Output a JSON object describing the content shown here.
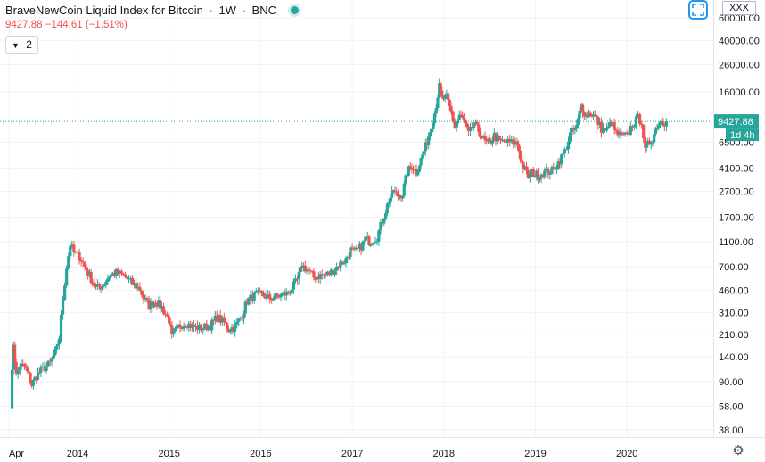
{
  "header": {
    "symbol_name": "BraveNewCoin Liquid Index for Bitcoin",
    "interval": "1W",
    "exchange": "BNC",
    "sep1": "·",
    "sep2": "·"
  },
  "price_line": {
    "last": "9427.88",
    "change": "−144.61",
    "change_pct": "(−1.51%)"
  },
  "indicators_button": {
    "label": "2"
  },
  "currency_button": {
    "label": "XXX"
  },
  "price_badge": {
    "value": "9427.88",
    "countdown": "1d 4h"
  },
  "colors": {
    "up": "#26a69a",
    "down": "#ef5350",
    "last_price_line": "#26a69a"
  },
  "icons": {
    "expand": "expand-icon",
    "settings": "gear-icon",
    "indicator_toggle": "chevron-down-icon"
  },
  "chart_data": {
    "type": "candlestick",
    "scale": "log",
    "y_ticks": [
      38,
      58,
      90,
      140,
      210,
      310,
      460,
      700,
      1100,
      1700,
      2700,
      4100,
      6500,
      16000,
      26000,
      40000,
      60000
    ],
    "y_tick_labels": [
      "38.00",
      "58.00",
      "90.00",
      "140.00",
      "210.00",
      "310.00",
      "460.00",
      "700.00",
      "1100.00",
      "1700.00",
      "2700.00",
      "4100.00",
      "6500.00",
      "16000.00",
      "26000.00",
      "40000.00",
      "60000.00"
    ],
    "x_ticks": [
      2013.25,
      2014,
      2015,
      2016,
      2017,
      2018,
      2019,
      2020
    ],
    "x_tick_labels": [
      "Apr",
      "2014",
      "2015",
      "2016",
      "2017",
      "2018",
      "2019",
      "2020"
    ],
    "last_price": 9427.88,
    "grid": true,
    "series": [
      {
        "t": 2013.27,
        "p": 60
      },
      {
        "t": 2013.3,
        "p": 180
      },
      {
        "t": 2013.33,
        "p": 100
      },
      {
        "t": 2013.37,
        "p": 120
      },
      {
        "t": 2013.42,
        "p": 118
      },
      {
        "t": 2013.47,
        "p": 100
      },
      {
        "t": 2013.5,
        "p": 85
      },
      {
        "t": 2013.55,
        "p": 100
      },
      {
        "t": 2013.6,
        "p": 110
      },
      {
        "t": 2013.7,
        "p": 125
      },
      {
        "t": 2013.77,
        "p": 160
      },
      {
        "t": 2013.8,
        "p": 200
      },
      {
        "t": 2013.84,
        "p": 400
      },
      {
        "t": 2013.88,
        "p": 700
      },
      {
        "t": 2013.92,
        "p": 1050
      },
      {
        "t": 2013.96,
        "p": 900
      },
      {
        "t": 2014.02,
        "p": 850
      },
      {
        "t": 2014.08,
        "p": 700
      },
      {
        "t": 2014.13,
        "p": 600
      },
      {
        "t": 2014.2,
        "p": 480
      },
      {
        "t": 2014.27,
        "p": 500
      },
      {
        "t": 2014.35,
        "p": 600
      },
      {
        "t": 2014.42,
        "p": 630
      },
      {
        "t": 2014.5,
        "p": 600
      },
      {
        "t": 2014.6,
        "p": 520
      },
      {
        "t": 2014.68,
        "p": 470
      },
      {
        "t": 2014.72,
        "p": 400
      },
      {
        "t": 2014.78,
        "p": 350
      },
      {
        "t": 2014.85,
        "p": 380
      },
      {
        "t": 2014.92,
        "p": 340
      },
      {
        "t": 2015.0,
        "p": 270
      },
      {
        "t": 2015.03,
        "p": 200
      },
      {
        "t": 2015.1,
        "p": 240
      },
      {
        "t": 2015.18,
        "p": 260
      },
      {
        "t": 2015.25,
        "p": 240
      },
      {
        "t": 2015.35,
        "p": 235
      },
      {
        "t": 2015.45,
        "p": 245
      },
      {
        "t": 2015.52,
        "p": 285
      },
      {
        "t": 2015.6,
        "p": 260
      },
      {
        "t": 2015.65,
        "p": 230
      },
      {
        "t": 2015.72,
        "p": 240
      },
      {
        "t": 2015.8,
        "p": 300
      },
      {
        "t": 2015.85,
        "p": 380
      },
      {
        "t": 2015.95,
        "p": 430
      },
      {
        "t": 2016.03,
        "p": 420
      },
      {
        "t": 2016.1,
        "p": 400
      },
      {
        "t": 2016.2,
        "p": 415
      },
      {
        "t": 2016.3,
        "p": 440
      },
      {
        "t": 2016.4,
        "p": 550
      },
      {
        "t": 2016.45,
        "p": 720
      },
      {
        "t": 2016.52,
        "p": 650
      },
      {
        "t": 2016.58,
        "p": 580
      },
      {
        "t": 2016.65,
        "p": 600
      },
      {
        "t": 2016.75,
        "p": 620
      },
      {
        "t": 2016.85,
        "p": 720
      },
      {
        "t": 2016.93,
        "p": 800
      },
      {
        "t": 2016.98,
        "p": 950
      },
      {
        "t": 2017.02,
        "p": 900
      },
      {
        "t": 2017.08,
        "p": 980
      },
      {
        "t": 2017.15,
        "p": 1150
      },
      {
        "t": 2017.2,
        "p": 1100
      },
      {
        "t": 2017.27,
        "p": 1200
      },
      {
        "t": 2017.33,
        "p": 1600
      },
      {
        "t": 2017.4,
        "p": 2300
      },
      {
        "t": 2017.45,
        "p": 2700
      },
      {
        "t": 2017.5,
        "p": 2500
      },
      {
        "t": 2017.55,
        "p": 2600
      },
      {
        "t": 2017.6,
        "p": 3800
      },
      {
        "t": 2017.65,
        "p": 4300
      },
      {
        "t": 2017.7,
        "p": 3800
      },
      {
        "t": 2017.75,
        "p": 4800
      },
      {
        "t": 2017.8,
        "p": 6000
      },
      {
        "t": 2017.85,
        "p": 8000
      },
      {
        "t": 2017.9,
        "p": 11000
      },
      {
        "t": 2017.95,
        "p": 17500
      },
      {
        "t": 2017.98,
        "p": 14000
      },
      {
        "t": 2018.03,
        "p": 14500
      },
      {
        "t": 2018.08,
        "p": 11000
      },
      {
        "t": 2018.12,
        "p": 8500
      },
      {
        "t": 2018.17,
        "p": 10500
      },
      {
        "t": 2018.22,
        "p": 9500
      },
      {
        "t": 2018.27,
        "p": 7500
      },
      {
        "t": 2018.33,
        "p": 9000
      },
      {
        "t": 2018.38,
        "p": 8000
      },
      {
        "t": 2018.45,
        "p": 6500
      },
      {
        "t": 2018.5,
        "p": 6400
      },
      {
        "t": 2018.55,
        "p": 7300
      },
      {
        "t": 2018.6,
        "p": 6600
      },
      {
        "t": 2018.7,
        "p": 6500
      },
      {
        "t": 2018.8,
        "p": 6400
      },
      {
        "t": 2018.85,
        "p": 4500
      },
      {
        "t": 2018.92,
        "p": 3500
      },
      {
        "t": 2018.96,
        "p": 3800
      },
      {
        "t": 2019.03,
        "p": 3600
      },
      {
        "t": 2019.1,
        "p": 3800
      },
      {
        "t": 2019.18,
        "p": 3900
      },
      {
        "t": 2019.25,
        "p": 4500
      },
      {
        "t": 2019.32,
        "p": 5500
      },
      {
        "t": 2019.38,
        "p": 7500
      },
      {
        "t": 2019.45,
        "p": 8500
      },
      {
        "t": 2019.5,
        "p": 12500
      },
      {
        "t": 2019.55,
        "p": 10500
      },
      {
        "t": 2019.6,
        "p": 11000
      },
      {
        "t": 2019.65,
        "p": 10300
      },
      {
        "t": 2019.72,
        "p": 8300
      },
      {
        "t": 2019.78,
        "p": 8000
      },
      {
        "t": 2019.83,
        "p": 9300
      },
      {
        "t": 2019.88,
        "p": 7600
      },
      {
        "t": 2019.94,
        "p": 7200
      },
      {
        "t": 2020.0,
        "p": 7300
      },
      {
        "t": 2020.06,
        "p": 9000
      },
      {
        "t": 2020.12,
        "p": 10000
      },
      {
        "t": 2020.16,
        "p": 9500
      },
      {
        "t": 2020.2,
        "p": 5500
      },
      {
        "t": 2020.23,
        "p": 6200
      },
      {
        "t": 2020.28,
        "p": 7000
      },
      {
        "t": 2020.33,
        "p": 8800
      },
      {
        "t": 2020.38,
        "p": 9700
      },
      {
        "t": 2020.41,
        "p": 9300
      },
      {
        "t": 2020.43,
        "p": 9427.88
      }
    ]
  }
}
